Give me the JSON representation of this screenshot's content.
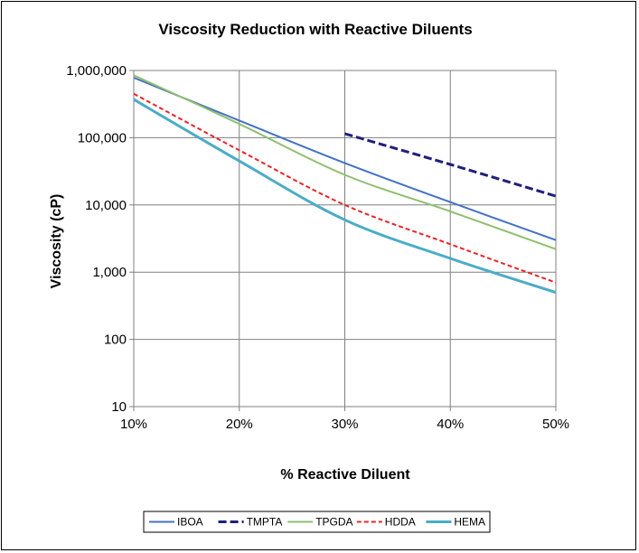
{
  "chart_data": {
    "type": "line",
    "title": "Viscosity Reduction with Reactive Diluents",
    "xlabel": "% Reactive Diluent",
    "ylabel": "Viscosity  (cP)",
    "x_ticks": [
      "10%",
      "20%",
      "30%",
      "40%",
      "50%"
    ],
    "y_ticks": [
      "10",
      "100",
      "1,000",
      "10,000",
      "100,000",
      "1,000,000"
    ],
    "xlim": [
      10,
      50
    ],
    "ylim": [
      10,
      1000000
    ],
    "y_scale": "log",
    "grid": true,
    "legend_position": "bottom",
    "series": [
      {
        "name": "IBOA",
        "color": "#4472C4",
        "dash": "solid",
        "points": [
          [
            10,
            780000
          ],
          [
            20,
            180000
          ],
          [
            30,
            42000
          ],
          [
            40,
            11000
          ],
          [
            50,
            3000
          ]
        ]
      },
      {
        "name": "TMPTA",
        "color": "#1F1F7A",
        "dash": "dashed",
        "points": [
          [
            30,
            115000
          ],
          [
            40,
            40000
          ],
          [
            50,
            13500
          ]
        ]
      },
      {
        "name": "TPGDA",
        "color": "#8FBF6F",
        "dash": "solid",
        "points": [
          [
            10,
            850000
          ],
          [
            20,
            160000
          ],
          [
            30,
            28000
          ],
          [
            40,
            8000
          ],
          [
            50,
            2200
          ]
        ]
      },
      {
        "name": "HDDA",
        "color": "#E8262A",
        "dash": "dashed",
        "points": [
          [
            10,
            450000
          ],
          [
            20,
            65000
          ],
          [
            30,
            10000
          ],
          [
            40,
            2600
          ],
          [
            50,
            700
          ]
        ]
      },
      {
        "name": "HEMA",
        "color": "#4BACC6",
        "dash": "solid",
        "points": [
          [
            10,
            370000
          ],
          [
            20,
            45000
          ],
          [
            30,
            6000
          ],
          [
            40,
            1600
          ],
          [
            50,
            500
          ]
        ]
      }
    ]
  }
}
